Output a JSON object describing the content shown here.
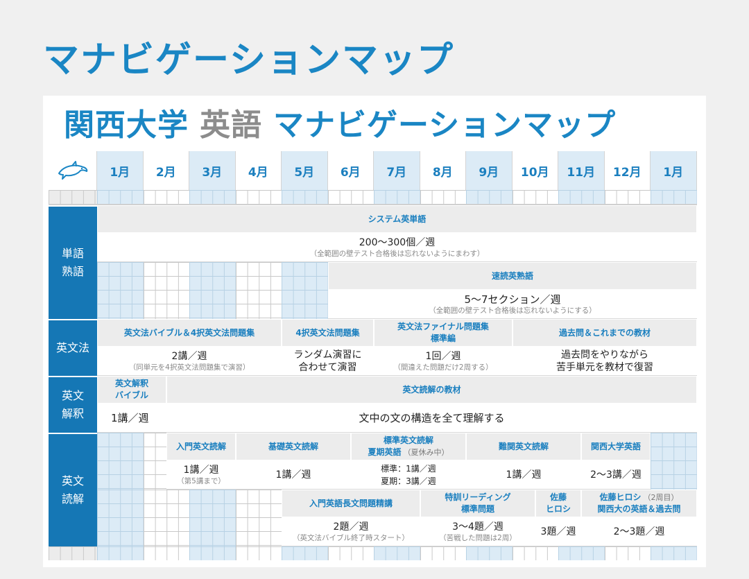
{
  "page_title": "マナビゲーションマップ",
  "map_title": {
    "school": "関西大学",
    "subject": "英語",
    "main": "マナビゲーションマップ"
  },
  "logo_icon": "dolphin-icon",
  "months": [
    "1月",
    "2月",
    "3月",
    "4月",
    "5月",
    "6月",
    "7月",
    "8月",
    "9月",
    "10月",
    "11月",
    "12月",
    "1月"
  ],
  "categories": {
    "vocab": "単語\n熟語",
    "grammar": "英文法",
    "interpretation": "英文\n解釈",
    "reading": "英文\n読解"
  },
  "vocab": {
    "system_title": "システム英単語",
    "system_value": "200～300個／週",
    "system_note": "（全範囲の壁テスト合格後は忘れないようにまわす）",
    "sokudoku_title": "速読英熟語",
    "sokudoku_value": "5～7セクション／週",
    "sokudoku_note": "（全範囲の壁テスト合格後は忘れないようにする）"
  },
  "grammar": {
    "bible_title": "英文法バイブル＆4択英文法問題集",
    "bible_value": "2講／週",
    "bible_note": "（同単元を4択英文法問題集で演習）",
    "fourchoice_title": "4択英文法問題集",
    "fourchoice_value1": "ランダム演習に",
    "fourchoice_value2": "合わせて演習",
    "final_title1": "英文法ファイナル問題集",
    "final_title2": "標準編",
    "final_value": "1回／週",
    "final_note": "（間違えた問題だけ2周する）",
    "past_title": "過去問＆これまでの教材",
    "past_value1": "過去問をやりながら",
    "past_value2": "苦手単元を教材で復習"
  },
  "interpretation": {
    "bible_title1": "英文解釈",
    "bible_title2": "バイブル",
    "bible_value": "1講／週",
    "material_title": "英文読解の教材",
    "material_value": "文中の文の構造を全て理解する"
  },
  "reading": {
    "nyumon_title": "入門英文読解",
    "nyumon_value": "1講／週",
    "nyumon_note": "（第5講まで）",
    "kiso_title": "基礎英文読解",
    "kiso_value": "1講／週",
    "hyojun_title1": "標準英文読解",
    "hyojun_title2": "夏期英語",
    "hyojun_title2_note": "（夏休み中）",
    "hyojun_value1": "標準：1講／週",
    "hyojun_value2": "夏期：3講／週",
    "nankan_title": "難関英文読解",
    "nankan_value": "1講／週",
    "kandai_title": "関西大学英語",
    "kandai_value": "2～3講／週",
    "chobun_title": "入門英語長文問題精講",
    "chobun_value": "2題／週",
    "chobun_note": "（英文法バイブル終了時スタート）",
    "tokkun_title1": "特訓リーディング",
    "tokkun_title2": "標準問題",
    "tokkun_value": "3～4題／週",
    "tokkun_note": "（苦戦した問題は2周）",
    "sato_title1": "佐藤",
    "sato_title2": "ヒロシ",
    "sato_value": "3題／週",
    "sato2_title1": "佐藤ヒロシ",
    "sato2_title1_note": "（2周目）",
    "sato2_title2": "関西大の英語＆過去問",
    "sato2_value": "2～3題／週"
  }
}
